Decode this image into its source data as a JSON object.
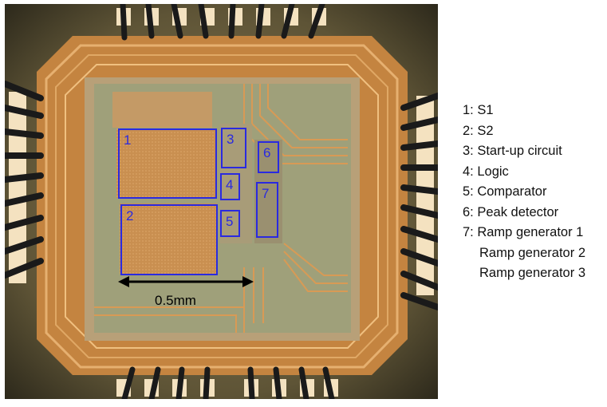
{
  "figure": {
    "scale_label": "0.5mm",
    "box_color": "#2a2ae0",
    "boxes": [
      {
        "id": "1",
        "name": "S1"
      },
      {
        "id": "2",
        "name": "S2"
      },
      {
        "id": "3",
        "name": "Start-up circuit"
      },
      {
        "id": "4",
        "name": "Logic"
      },
      {
        "id": "5",
        "name": "Comparator"
      },
      {
        "id": "6",
        "name": "Peak detector"
      },
      {
        "id": "7",
        "name": "Ramp generators 1-3"
      }
    ]
  },
  "legend": [
    "1: S1",
    "2: S2",
    "3: Start-up circuit",
    "4: Logic",
    "5: Comparator",
    "6: Peak detector",
    "7: Ramp generator 1",
    "Ramp generator 2",
    "Ramp generator 3"
  ]
}
